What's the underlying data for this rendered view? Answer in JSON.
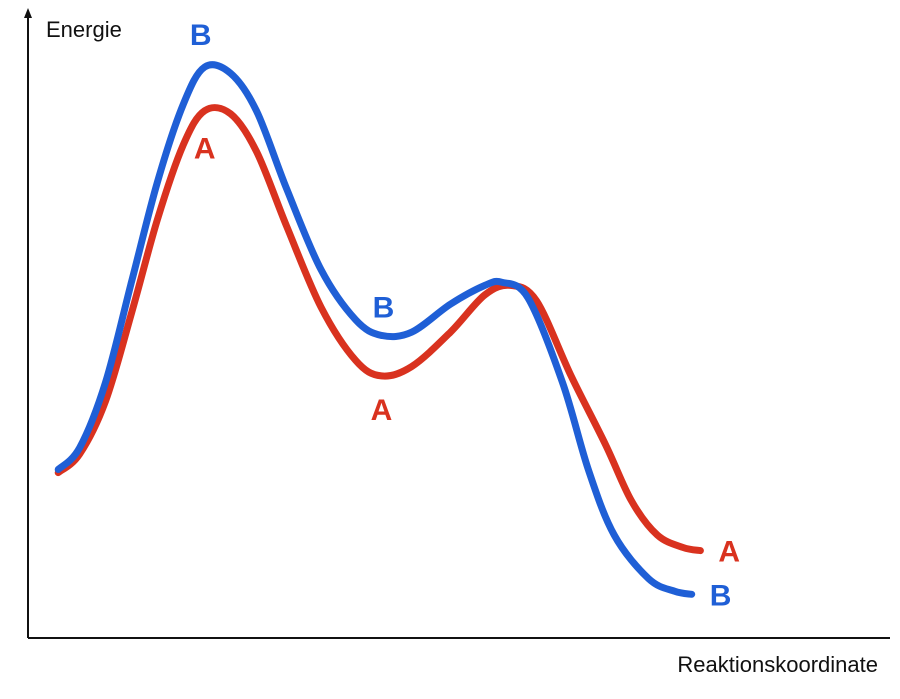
{
  "chart_data": {
    "type": "line",
    "title": "",
    "ylabel": "Energie",
    "xlabel": "Reaktionskoordinate",
    "grid": false,
    "legend": "none",
    "colors": {
      "A": "#d9321f",
      "B": "#1f5fd6",
      "axis": "#111111"
    },
    "series": [
      {
        "name": "A",
        "points": [
          [
            0.035,
            0.265
          ],
          [
            0.06,
            0.295
          ],
          [
            0.09,
            0.38
          ],
          [
            0.12,
            0.52
          ],
          [
            0.15,
            0.67
          ],
          [
            0.18,
            0.79
          ],
          [
            0.205,
            0.845
          ],
          [
            0.235,
            0.84
          ],
          [
            0.265,
            0.78
          ],
          [
            0.3,
            0.66
          ],
          [
            0.34,
            0.53
          ],
          [
            0.38,
            0.445
          ],
          [
            0.41,
            0.42
          ],
          [
            0.445,
            0.435
          ],
          [
            0.49,
            0.49
          ],
          [
            0.53,
            0.55
          ],
          [
            0.56,
            0.565
          ],
          [
            0.59,
            0.54
          ],
          [
            0.63,
            0.42
          ],
          [
            0.67,
            0.31
          ],
          [
            0.7,
            0.22
          ],
          [
            0.73,
            0.165
          ],
          [
            0.76,
            0.145
          ],
          [
            0.78,
            0.14
          ]
        ]
      },
      {
        "name": "B",
        "points": [
          [
            0.035,
            0.27
          ],
          [
            0.06,
            0.305
          ],
          [
            0.09,
            0.41
          ],
          [
            0.12,
            0.57
          ],
          [
            0.15,
            0.73
          ],
          [
            0.18,
            0.855
          ],
          [
            0.205,
            0.915
          ],
          [
            0.235,
            0.905
          ],
          [
            0.265,
            0.845
          ],
          [
            0.3,
            0.72
          ],
          [
            0.34,
            0.59
          ],
          [
            0.38,
            0.51
          ],
          [
            0.41,
            0.485
          ],
          [
            0.445,
            0.49
          ],
          [
            0.49,
            0.535
          ],
          [
            0.53,
            0.565
          ],
          [
            0.55,
            0.57
          ],
          [
            0.58,
            0.545
          ],
          [
            0.62,
            0.41
          ],
          [
            0.65,
            0.27
          ],
          [
            0.68,
            0.165
          ],
          [
            0.72,
            0.095
          ],
          [
            0.75,
            0.075
          ],
          [
            0.77,
            0.07
          ]
        ]
      }
    ],
    "annotations": [
      {
        "series": "B",
        "text": "B",
        "anchor": "peak-top"
      },
      {
        "series": "A",
        "text": "A",
        "anchor": "peak-bottom"
      },
      {
        "series": "B",
        "text": "B",
        "anchor": "valley-top"
      },
      {
        "series": "A",
        "text": "A",
        "anchor": "valley-bottom"
      },
      {
        "series": "A",
        "text": "A",
        "anchor": "end-right"
      },
      {
        "series": "B",
        "text": "B",
        "anchor": "end-right"
      }
    ]
  }
}
